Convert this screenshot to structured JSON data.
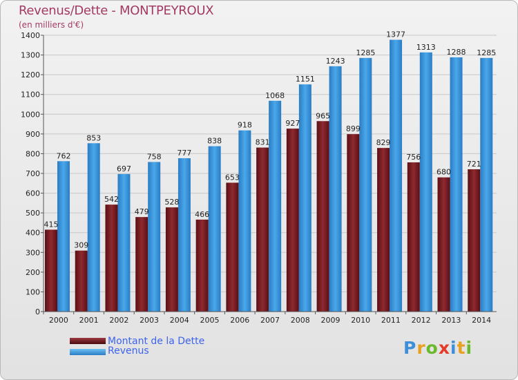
{
  "title": "Revenus/Dette - MONTPEYROUX",
  "subtitle": "(en milliers d'€)",
  "logo": "Proxiti",
  "colors": {
    "dette": "#7a1e24",
    "revenus": "#3d9be0",
    "title": "#a33a63",
    "legend_text": "#3d63ee"
  },
  "chart_data": {
    "type": "bar",
    "categories": [
      "2000",
      "2001",
      "2002",
      "2003",
      "2004",
      "2005",
      "2006",
      "2007",
      "2008",
      "2009",
      "2010",
      "2011",
      "2012",
      "2013",
      "2014"
    ],
    "series": [
      {
        "name": "Montant de la Dette",
        "values": [
          415,
          309,
          542,
          479,
          528,
          466,
          653,
          831,
          927,
          965,
          899,
          829,
          756,
          680,
          721
        ]
      },
      {
        "name": "Revenus",
        "values": [
          762,
          853,
          697,
          758,
          777,
          838,
          918,
          1068,
          1151,
          1243,
          1285,
          1377,
          1313,
          1288,
          1285
        ]
      }
    ],
    "ylim": [
      0,
      1400
    ],
    "yticks": [
      0,
      100,
      200,
      300,
      400,
      500,
      600,
      700,
      800,
      900,
      1000,
      1100,
      1200,
      1300,
      1400
    ],
    "grid": true,
    "legend": "bottom-left"
  }
}
